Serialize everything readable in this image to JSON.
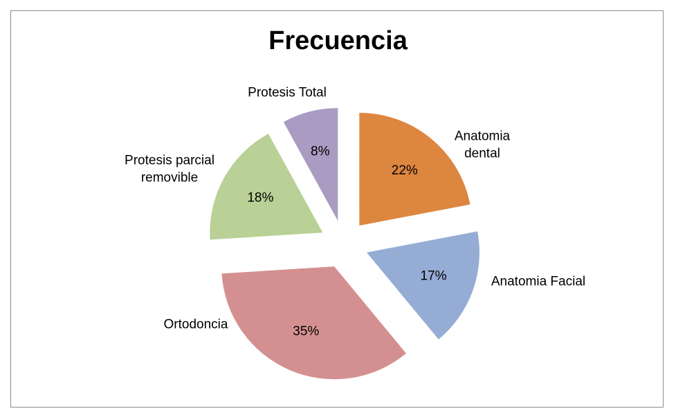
{
  "chart_data": {
    "type": "pie",
    "title": "Frecuencia",
    "categories": [
      "Anatomia dental",
      "Anatomia Facial",
      "Ortodoncia",
      "Protesis parcial removible",
      "Protesis Total"
    ],
    "values": [
      22,
      17,
      35,
      18,
      8
    ],
    "value_labels": [
      "22%",
      "17%",
      "35%",
      "18%",
      "8%"
    ],
    "colors": [
      "#dd8640",
      "#95acd5",
      "#d49090",
      "#b9d096",
      "#a99bc2"
    ]
  }
}
